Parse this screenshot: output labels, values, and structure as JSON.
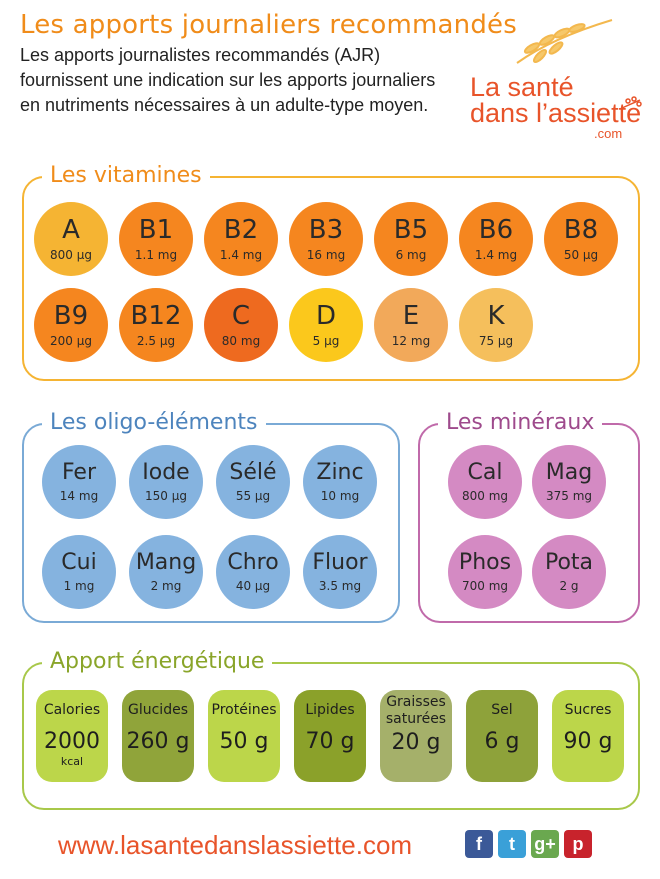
{
  "title": "Les apports journaliers recommandés",
  "intro": "Les apports journalistes recommandés (AJR) fournissent une indication sur les apports journaliers en nutriments nécessaires à un adulte-type moyen.",
  "logo": {
    "line1": "La santé",
    "line2": "dans l’assiette",
    "line3": ".com"
  },
  "vitamins": {
    "title": "Les vitamines",
    "items": [
      {
        "name": "A",
        "value": "800 µg",
        "color": "#f5b433"
      },
      {
        "name": "B1",
        "value": "1.1 mg",
        "color": "#f5861f"
      },
      {
        "name": "B2",
        "value": "1.4 mg",
        "color": "#f5861f"
      },
      {
        "name": "B3",
        "value": "16 mg",
        "color": "#f5861f"
      },
      {
        "name": "B5",
        "value": "6 mg",
        "color": "#f5861f"
      },
      {
        "name": "B6",
        "value": "1.4 mg",
        "color": "#f5861f"
      },
      {
        "name": "B8",
        "value": "50 µg",
        "color": "#f5861f"
      },
      {
        "name": "B9",
        "value": "200 µg",
        "color": "#f5861f"
      },
      {
        "name": "B12",
        "value": "2.5 µg",
        "color": "#f5861f"
      },
      {
        "name": "C",
        "value": "80 mg",
        "color": "#ee6a1f"
      },
      {
        "name": "D",
        "value": "5 µg",
        "color": "#fbc81c"
      },
      {
        "name": "E",
        "value": "12 mg",
        "color": "#f2a95a"
      },
      {
        "name": "K",
        "value": "75 µg",
        "color": "#f5bf5c"
      }
    ]
  },
  "oligo": {
    "title": "Les oligo-éléments",
    "items": [
      {
        "name": "Fer",
        "value": "14 mg"
      },
      {
        "name": "Iode",
        "value": "150 µg"
      },
      {
        "name": "Sélé",
        "value": "55 µg"
      },
      {
        "name": "Zinc",
        "value": "10 mg"
      },
      {
        "name": "Cui",
        "value": "1 mg"
      },
      {
        "name": "Mang",
        "value": "2 mg"
      },
      {
        "name": "Chro",
        "value": "40 µg"
      },
      {
        "name": "Fluor",
        "value": "3.5 mg"
      }
    ],
    "color": "#85b3df"
  },
  "minerals": {
    "title": "Les minéraux",
    "items": [
      {
        "name": "Cal",
        "value": "800 mg"
      },
      {
        "name": "Mag",
        "value": "375 mg"
      },
      {
        "name": "Phos",
        "value": "700 mg"
      },
      {
        "name": "Pota",
        "value": "2 g"
      }
    ],
    "color": "#d48ac3"
  },
  "energy": {
    "title": "Apport énergétique",
    "items": [
      {
        "label": "Calories",
        "value": "2000",
        "unit": "kcal",
        "color": "#bcd64a"
      },
      {
        "label": "Glucides",
        "value": "260 g",
        "unit": "",
        "color": "#90a43a"
      },
      {
        "label": "Protéines",
        "value": "50 g",
        "unit": "",
        "color": "#bcd64a"
      },
      {
        "label": "Lipides",
        "value": "70 g",
        "unit": "",
        "color": "#8ba12a"
      },
      {
        "label": "Graisses saturées",
        "value": "20 g",
        "unit": "",
        "color": "#a5b06a"
      },
      {
        "label": "Sel",
        "value": "6 g",
        "unit": "",
        "color": "#8ea23a"
      },
      {
        "label": "Sucres",
        "value": "90 g",
        "unit": "",
        "color": "#bcd64a"
      }
    ]
  },
  "footer": {
    "url": "www.lasantedanslassiette.com",
    "social": [
      {
        "icon": "facebook-icon",
        "glyph": "f",
        "color": "#3b5998"
      },
      {
        "icon": "twitter-icon",
        "glyph": "t",
        "color": "#3aa0d8"
      },
      {
        "icon": "google-plus-icon",
        "glyph": "g+",
        "color": "#6aa84f"
      },
      {
        "icon": "pinterest-icon",
        "glyph": "p",
        "color": "#c8232c"
      }
    ]
  }
}
